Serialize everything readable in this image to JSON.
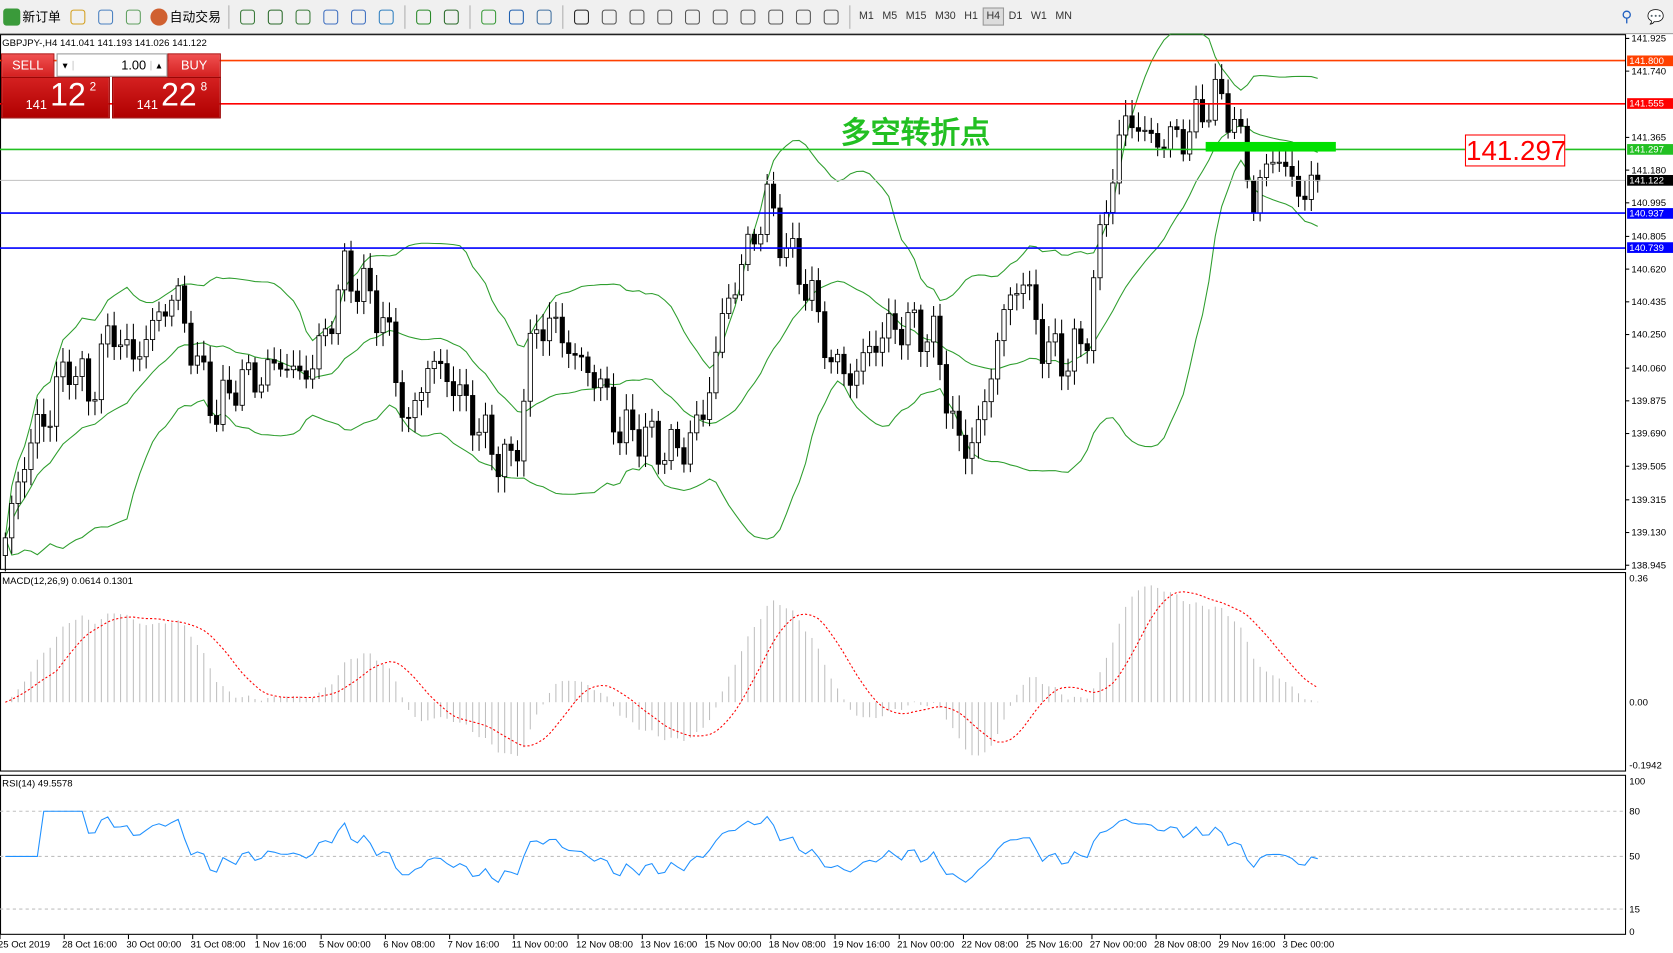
{
  "toolbar": {
    "new_order": "新订单",
    "auto_trade": "自动交易",
    "icons": [
      "new-order-icon",
      "gold-icon",
      "server-icon",
      "signal-icon",
      "auto-trade-icon",
      "bar-chart-icon",
      "candle-chart-icon",
      "line-chart-icon",
      "zoom-in-icon",
      "zoom-out-icon",
      "tile-icon",
      "autoscroll-icon",
      "chart-shift-icon",
      "indicators-icon",
      "periods-icon",
      "templates-icon",
      "cursor-icon",
      "crosshair-icon",
      "vertical-line-icon",
      "horizontal-line-icon",
      "trendline-icon",
      "fibo-icon",
      "fibo-fan-icon",
      "text-icon",
      "label-icon",
      "arrows-icon"
    ],
    "timeframes": [
      "M1",
      "M5",
      "M15",
      "M30",
      "H1",
      "H4",
      "D1",
      "W1",
      "MN"
    ],
    "active_timeframe": "H4"
  },
  "symbol_line": "GBPJPY-,H4  141.041 141.193 141.026 141.122",
  "trade_panel": {
    "sell": "SELL",
    "buy": "BUY",
    "lot": "1.00",
    "bid_big": "141",
    "bid_main": "12",
    "bid_sup": "2",
    "ask_big": "141",
    "ask_main": "22",
    "ask_sup": "8"
  },
  "annotation": {
    "text": "多空转折点",
    "price_box": "141.297"
  },
  "colors": {
    "bull_bear_outline": "#000000",
    "bands": "#2e9e2e",
    "macd_hist": "#c0c0c0",
    "macd_signal": "#ff0000",
    "rsi": "#1e90ff"
  },
  "chart_data": {
    "type": "candlestick",
    "price_axis": [
      "141.925",
      "141.740",
      "141.365",
      "141.180",
      "140.995",
      "140.805",
      "140.620",
      "140.435",
      "140.250",
      "140.060",
      "139.875",
      "139.690",
      "139.505",
      "139.315",
      "139.130",
      "138.945"
    ],
    "ylim": [
      138.945,
      141.925
    ],
    "hlines": [
      {
        "price": 141.8,
        "label": "141.800",
        "color": "#ff4000"
      },
      {
        "price": 141.555,
        "label": "141.555",
        "color": "#ff0000"
      },
      {
        "price": 141.297,
        "label": "141.297",
        "color": "#22c022"
      },
      {
        "price": 141.122,
        "label": "141.122",
        "color": "#000000"
      },
      {
        "price": 140.937,
        "label": "140.937",
        "color": "#0000ff"
      },
      {
        "price": 140.739,
        "label": "140.739",
        "color": "#0000ff"
      }
    ],
    "close_trace": [
      139.1,
      139.6,
      139.8,
      140.1,
      139.9,
      140.3,
      140.1,
      140.3,
      140.5,
      140.1,
      139.8,
      140.0,
      140.0,
      140.1,
      140.0,
      140.2,
      140.6,
      140.5,
      140.3,
      139.7,
      140.1,
      140.0,
      139.8,
      139.6,
      139.5,
      140.3,
      140.3,
      140.1,
      140.0,
      139.7,
      139.7,
      139.6,
      139.6,
      139.8,
      140.4,
      140.7,
      141.0,
      140.7,
      140.5,
      140.1,
      140.0,
      140.2,
      140.3,
      140.3,
      140.2,
      139.6,
      139.7,
      140.3,
      140.6,
      140.2,
      140.1,
      140.2,
      141.0,
      141.5,
      141.35,
      141.35,
      141.4,
      141.6,
      141.5,
      141.0,
      141.3,
      141.05,
      141.12
    ],
    "dates": [
      "25 Oct 2019",
      "28 Oct 16:00",
      "30 Oct 00:00",
      "31 Oct 08:00",
      "1 Nov 16:00",
      "5 Nov 00:00",
      "6 Nov 08:00",
      "7 Nov 16:00",
      "11 Nov 00:00",
      "12 Nov 08:00",
      "13 Nov 16:00",
      "15 Nov 00:00",
      "18 Nov 08:00",
      "19 Nov 16:00",
      "21 Nov 00:00",
      "22 Nov 08:00",
      "25 Nov 16:00",
      "27 Nov 00:00",
      "28 Nov 08:00",
      "29 Nov 16:00",
      "3 Dec 00:00"
    ],
    "macd": {
      "label": "MACD(12,26,9) 0.0614 0.1301",
      "axis": [
        "0.36",
        "0.00",
        "-0.1942"
      ]
    },
    "rsi": {
      "label": "RSI(14) 49.5578",
      "axis": [
        "100",
        "80",
        "50",
        "15",
        "0"
      ],
      "levels": [
        80,
        50,
        15
      ]
    }
  }
}
